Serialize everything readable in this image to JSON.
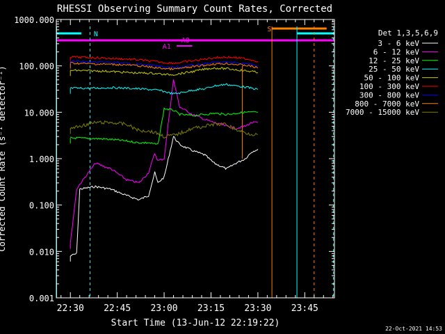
{
  "chart_data": {
    "type": "line",
    "title": "RHESSI Observing Summary Count Rates, Corrected",
    "xlabel": "Start Time (13-Jun-12 22:19:22)",
    "ylabel": "Corrected Count Rate (s⁻¹ detector⁻¹)",
    "y_scale": "log",
    "ylim": [
      0.001,
      1000
    ],
    "xlim_minutes_after_2230": [
      -4.5,
      24.5
    ],
    "x_tick_labels": [
      "22:30",
      "22:45",
      "23:00",
      "23:15",
      "23:30",
      "23:45"
    ],
    "x_tick_minutes_after_2230": [
      0,
      15,
      30,
      45,
      60,
      75
    ],
    "y_tick_labels": [
      "0.001",
      "0.010",
      "0.100",
      "1.000",
      "10.000",
      "100.000",
      "1000.000"
    ],
    "y_tick_values": [
      0.001,
      0.01,
      0.1,
      1,
      10,
      100,
      1000
    ],
    "legend_title": "Det 1,3,5,6,9",
    "legend_position": "right",
    "series": [
      {
        "name": "3 - 6 keV",
        "color": "#ffffff",
        "x": [
          0,
          2,
          3,
          8,
          13,
          18,
          22,
          25,
          27,
          28,
          30,
          33,
          35,
          39,
          43,
          46,
          50,
          53,
          56,
          58,
          60
        ],
        "y": [
          0.008,
          0.009,
          0.22,
          0.25,
          0.22,
          0.16,
          0.13,
          0.16,
          0.5,
          0.3,
          0.4,
          3.0,
          2.0,
          1.5,
          1.2,
          0.8,
          0.6,
          0.8,
          1.0,
          1.4,
          1.6
        ]
      },
      {
        "name": "6 - 12 keV",
        "color": "#ff00ff",
        "x": [
          0,
          2,
          3,
          8,
          13,
          18,
          22,
          25,
          27,
          28,
          30,
          33,
          35,
          39,
          43,
          46,
          50,
          53,
          56,
          58,
          60
        ],
        "y": [
          0.015,
          0.22,
          0.28,
          0.8,
          0.6,
          0.35,
          0.3,
          0.5,
          1.3,
          0.9,
          1.0,
          50,
          13,
          9,
          7,
          6,
          5,
          4.5,
          5,
          6,
          6
        ]
      },
      {
        "name": "12 - 25 keV",
        "color": "#00ff00",
        "x": [
          0,
          8,
          13,
          18,
          22,
          25,
          28,
          30,
          33,
          35,
          39,
          43,
          46,
          50,
          53,
          56,
          58,
          60
        ],
        "y": [
          2.8,
          2.7,
          2.6,
          2.4,
          2.2,
          2.2,
          2.0,
          12,
          11,
          9,
          8.5,
          9,
          9.5,
          9,
          9.5,
          10,
          10,
          10
        ]
      },
      {
        "name": "25 - 50 keV",
        "color": "#00ffff",
        "x": [
          0,
          8,
          13,
          18,
          22,
          25,
          28,
          30,
          33,
          35,
          39,
          43,
          46,
          50,
          53,
          56,
          58,
          60
        ],
        "y": [
          33,
          33,
          34,
          33,
          32,
          31,
          30,
          28,
          25,
          26,
          30,
          32,
          37,
          40,
          37,
          35,
          33,
          31
        ]
      },
      {
        "name": "50 - 100 keV",
        "color": "#cccc00",
        "x": [
          0,
          8,
          13,
          18,
          22,
          25,
          28,
          30,
          33,
          35,
          39,
          43,
          46,
          50,
          53,
          56,
          58,
          60
        ],
        "y": [
          80,
          78,
          76,
          72,
          70,
          70,
          68,
          65,
          65,
          68,
          75,
          85,
          90,
          87,
          83,
          78,
          76,
          72
        ]
      },
      {
        "name": "100 - 300 keV",
        "color": "#ff0000",
        "x": [
          0,
          8,
          13,
          18,
          22,
          25,
          28,
          30,
          33,
          35,
          39,
          43,
          46,
          50,
          53,
          56,
          58,
          60
        ],
        "y": [
          155,
          150,
          145,
          140,
          135,
          128,
          122,
          118,
          115,
          118,
          128,
          140,
          150,
          155,
          150,
          142,
          135,
          125
        ]
      },
      {
        "name": "300 - 800 keV",
        "color": "#0000ff",
        "x": [
          0,
          8,
          13,
          18,
          22,
          25,
          28,
          30,
          33,
          35,
          39,
          43,
          46,
          50,
          53,
          56,
          58,
          60
        ],
        "y": [
          125,
          120,
          118,
          112,
          108,
          103,
          98,
          95,
          93,
          95,
          103,
          110,
          118,
          120,
          117,
          112,
          106,
          100
        ]
      },
      {
        "name": "800 - 7000 keV",
        "color": "#ff8000",
        "x": [
          0,
          8,
          13,
          18,
          22,
          25,
          28,
          30,
          33,
          35,
          39,
          43,
          46,
          50,
          53,
          56,
          58,
          60
        ],
        "y": [
          115,
          110,
          108,
          105,
          100,
          95,
          90,
          88,
          85,
          88,
          95,
          103,
          110,
          112,
          108,
          103,
          98,
          90
        ]
      },
      {
        "name": "7000 - 15000 keV",
        "color": "#808000",
        "x": [
          0,
          3,
          8,
          13,
          18,
          22,
          25,
          28,
          30,
          33,
          35,
          39,
          43,
          46,
          50,
          53,
          56,
          58,
          60
        ],
        "y": [
          4.5,
          5,
          6,
          6,
          5.5,
          4,
          4,
          3.5,
          3,
          3.2,
          3.5,
          4.5,
          5,
          5.5,
          5.5,
          4.2,
          3.6,
          3.4,
          3.3
        ]
      }
    ],
    "annotations": [
      {
        "label": "N",
        "color": "#00ffff"
      },
      {
        "label": "S",
        "color": "#ff8000"
      },
      {
        "label": "A1",
        "color": "#ff00ff"
      },
      {
        "label": "A0",
        "color": "#ff00ff"
      }
    ],
    "footer_date": "22-Oct-2021 14:53"
  }
}
